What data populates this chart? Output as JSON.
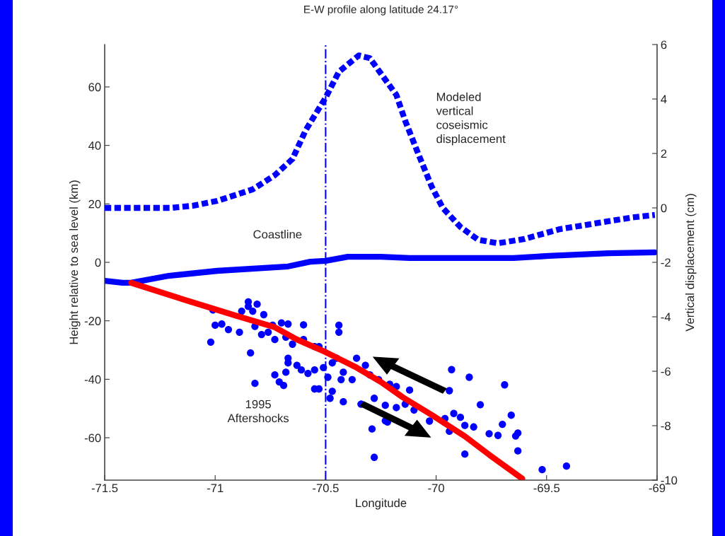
{
  "chart_data": {
    "type": "line",
    "title": "E-W profile along latitude 24.17°",
    "xlabel": "Longitude",
    "ylabel": "Height relative to sea level (km)",
    "y2label": "Vertical displacement (cm)",
    "xlim": [
      -71.5,
      -69
    ],
    "xticks": [
      -71.5,
      -71,
      -70.5,
      -70,
      -69.5,
      -69
    ],
    "ylim": [
      -74.5,
      74.5
    ],
    "yticks": [
      -60,
      -40,
      -20,
      0,
      20,
      40,
      60
    ],
    "y2lim": [
      -10,
      6
    ],
    "y2ticks": [
      -10,
      -8,
      -6,
      -4,
      -2,
      0,
      2,
      4,
      6
    ],
    "series": [
      {
        "axis": "y2",
        "color": "#0000ff",
        "line_style": "dashed",
        "x": [
          -71.5,
          -71.2,
          -71.1,
          -70.99,
          -70.83,
          -70.73,
          -70.65,
          -70.59,
          -70.5,
          -70.44,
          -70.35,
          -70.3,
          -70.22,
          -70.18,
          -70.14,
          -70.08,
          -70.02,
          -69.97,
          -69.89,
          -69.81,
          -69.72,
          -69.6,
          -69.44,
          -69.28,
          -69.12,
          -69.01
        ],
        "values": [
          0,
          0,
          0.08,
          0.26,
          0.68,
          1.2,
          1.8,
          2.86,
          4.05,
          5.0,
          5.6,
          5.5,
          4.6,
          4.15,
          3.2,
          1.97,
          0.78,
          0,
          -0.7,
          -1.17,
          -1.3,
          -1.14,
          -0.78,
          -0.57,
          -0.36,
          -0.26
        ]
      },
      {
        "color": "#0000ff",
        "line_style": "solid",
        "x": [
          -71.5,
          -71.42,
          -71.38,
          -71.21,
          -70.99,
          -70.67,
          -70.57,
          -70.5,
          -70.4,
          -70.25,
          -70.12,
          -69.86,
          -69.65,
          -69.49,
          -69.22,
          -69.01
        ],
        "values": [
          -6.3,
          -7.0,
          -7.0,
          -4.6,
          -2.9,
          -1.4,
          0.2,
          0.5,
          1.9,
          1.9,
          1.5,
          1.5,
          1.5,
          2.2,
          3.1,
          3.4
        ]
      },
      {
        "type": "scatter",
        "color": "#0000ff",
        "marker": "circle",
        "x": [
          -70.85,
          -70.85,
          -70.81,
          -70.88,
          -70.83,
          -70.78,
          -71.01,
          -71.0,
          -70.97,
          -70.94,
          -70.89,
          -71.02,
          -70.84,
          -70.82,
          -70.82,
          -70.79,
          -70.76,
          -70.74,
          -70.7,
          -70.67,
          -70.6,
          -70.73,
          -70.68,
          -70.65,
          -70.6,
          -70.55,
          -70.53,
          -70.67,
          -70.67,
          -70.63,
          -70.61,
          -70.58,
          -70.55,
          -70.73,
          -70.71,
          -70.69,
          -70.68,
          -70.55,
          -70.53,
          -70.44,
          -70.44,
          -70.47,
          -70.48,
          -70.42,
          -70.43,
          -70.36,
          -70.32,
          -70.3,
          -70.26,
          -70.21,
          -70.18,
          -70.28,
          -70.23,
          -70.18,
          -70.34,
          -70.29,
          -70.28,
          -70.23,
          -70.22,
          -70.47,
          -70.51,
          -70.49,
          -70.42,
          -70.38,
          -70.45,
          -69.93,
          -69.85,
          -69.69,
          -69.94,
          -69.8,
          -69.66,
          -69.92,
          -69.89,
          -69.87,
          -69.83,
          -69.96,
          -70.03,
          -69.94,
          -69.7,
          -69.76,
          -69.72,
          -69.63,
          -69.64,
          -69.63,
          -69.87,
          -69.52,
          -69.41,
          -70.12,
          -70.1,
          -70.14
        ],
        "values": [
          -13.5,
          -15.1,
          -14.3,
          -16.7,
          -16.7,
          -17.9,
          -16.3,
          -21.5,
          -21.1,
          -23.0,
          -23.9,
          -27.3,
          -31.0,
          -41.4,
          -21.9,
          -24.7,
          -23.9,
          -21.5,
          -20.7,
          -21.1,
          -21.4,
          -26.4,
          -25.6,
          -28.0,
          -26.4,
          -28.8,
          -28.8,
          -32.8,
          -34.4,
          -35.2,
          -36.8,
          -38.0,
          -36.8,
          -38.5,
          -40.9,
          -42.1,
          -37.6,
          -43.3,
          -43.3,
          -21.5,
          -23.9,
          -44.1,
          -46.5,
          -47.7,
          -40.1,
          -32.8,
          -35.2,
          -38.5,
          -40.1,
          -41.7,
          -42.5,
          -46.5,
          -48.9,
          -49.7,
          -48.5,
          -57.0,
          -66.7,
          -54.2,
          -54.6,
          -34.4,
          -36.0,
          -39.3,
          -37.6,
          -40.1,
          -32.8,
          -36.7,
          -39.3,
          -41.9,
          -43.9,
          -48.7,
          -52.3,
          -51.7,
          -53.0,
          -55.8,
          -56.3,
          -53.4,
          -54.3,
          -57.8,
          -55.4,
          -58.6,
          -59.2,
          -58.4,
          -59.4,
          -64.5,
          -65.6,
          -70.9,
          -69.7,
          -43.7,
          -50.5,
          -48.5
        ]
      },
      {
        "color": "#ff0000",
        "line_style": "solid",
        "x": [
          -71.38,
          -71.11,
          -70.9,
          -70.73,
          -70.63,
          -70.5,
          -70.36,
          -70.25,
          -70.15,
          -70.02,
          -69.87,
          -69.76,
          -69.61
        ],
        "values": [
          -7.0,
          -13.5,
          -18.4,
          -22.2,
          -26.4,
          -30.7,
          -36.0,
          -40.9,
          -46.2,
          -52.2,
          -59.5,
          -65.8,
          -74.0
        ]
      }
    ],
    "ref_lines": [
      {
        "axis": "x",
        "value": -70.5,
        "label": "Coastline",
        "color": "#0000ff",
        "line_style": "dashdot"
      }
    ],
    "annotations": [
      "Modeled\nvertical\ncoseismic\ndisplacement",
      "1995\nAftershocks"
    ]
  }
}
